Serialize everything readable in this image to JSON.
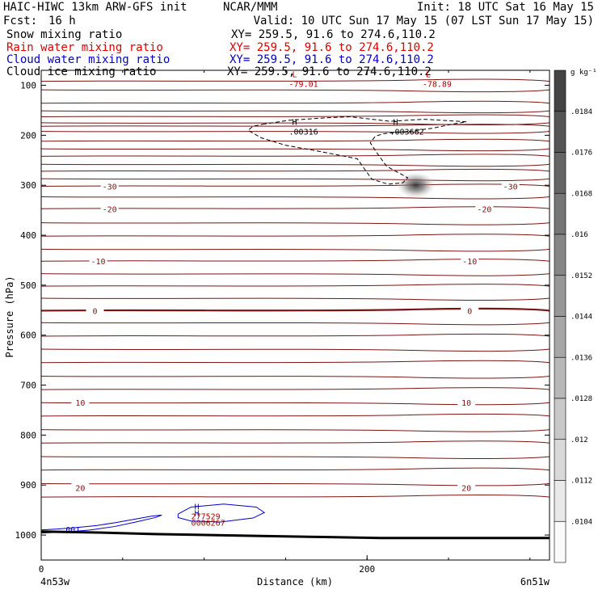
{
  "header": {
    "title_left": "HAIC-HIWC 13km ARW-GFS init",
    "org": "NCAR/MMM",
    "init": "Init: 18 UTC Sat 16 May 15",
    "fcst_label": "Fcst:",
    "fcst_value": "16 h",
    "valid": "Valid: 10 UTC Sun 17 May 15 (07 LST Sun 17 May 15)"
  },
  "fields": [
    {
      "name": "Snow mixing ratio",
      "xy": "XY= 259.5, 91.6 to 274.6,110.2",
      "color": "#000000"
    },
    {
      "name": "Rain water mixing ratio",
      "xy": "XY= 259.5, 91.6 to 274.6,110.2",
      "color": "#e00000"
    },
    {
      "name": "Cloud water mixing ratio",
      "xy": "XY= 259.5, 91.6 to 274.6,110.2",
      "color": "#0000c8"
    },
    {
      "name": "Cloud ice mixing ratio",
      "xy": "XY= 259.5, 91.6 to 274.6,110.2",
      "color": "#000000"
    }
  ],
  "colorbar": {
    "units": "g kg⁻¹",
    "labels": [
      ".0184",
      ".0176",
      ".0168",
      ".016",
      ".0152",
      ".0144",
      ".0136",
      ".0128",
      ".012",
      ".0112",
      ".0104"
    ]
  },
  "chart_data": {
    "type": "contour-cross-section",
    "xlabel": "Distance (km)",
    "ylabel": "Pressure (hPa)",
    "xlim": [
      0,
      312
    ],
    "ylim": [
      1050,
      70
    ],
    "x_ticks": [
      0,
      200
    ],
    "y_ticks": [
      100,
      200,
      300,
      400,
      500,
      600,
      700,
      800,
      900,
      1000
    ],
    "x_endpoint_labels": [
      "4n53w",
      "6n51w"
    ],
    "temperature_isotherms_hpa": [
      92,
      109,
      136,
      151,
      163,
      175,
      182,
      192,
      212,
      227,
      242,
      258,
      272,
      287,
      302,
      323,
      347,
      375,
      402,
      428,
      452,
      477,
      502,
      526,
      551,
      575,
      602,
      628,
      655,
      682,
      709,
      735,
      762,
      789,
      816,
      843,
      870,
      897,
      924
    ],
    "isotherm_labels": [
      {
        "text": "-30",
        "x": 42,
        "p": 302
      },
      {
        "text": "-30",
        "x": 288,
        "p": 302
      },
      {
        "text": "-20",
        "x": 42,
        "p": 347
      },
      {
        "text": "-20",
        "x": 272,
        "p": 347
      },
      {
        "text": "-10",
        "x": 35,
        "p": 452
      },
      {
        "text": "-10",
        "x": 263,
        "p": 452
      },
      {
        "text": "0",
        "x": 33,
        "p": 551
      },
      {
        "text": "0",
        "x": 263,
        "p": 551
      },
      {
        "text": "10",
        "x": 24,
        "p": 735
      },
      {
        "text": "10",
        "x": 261,
        "p": 735
      },
      {
        "text": "20",
        "x": 24,
        "p": 905
      },
      {
        "text": "20",
        "x": 261,
        "p": 905
      }
    ],
    "freezing_level_hpa": 551,
    "extrema": [
      {
        "type": "L",
        "value": "-79.01",
        "x": 157,
        "p": 100
      },
      {
        "type": "L",
        "value": "-78.89",
        "x": 239,
        "p": 100
      },
      {
        "type": "H",
        "value": ".00316",
        "x": 157,
        "p": 195
      },
      {
        "type": "H",
        "value": ".003662",
        "x": 219,
        "p": 195
      },
      {
        "type": "H",
        "value": "277529",
        "x": 97,
        "p": 965
      },
      {
        "type": "H",
        "value": "0006267",
        "x": 97,
        "p": 978
      }
    ],
    "cloud_water_contour_label": ".001",
    "snow_max_location": {
      "x": 230,
      "p": 300
    },
    "terrain_hpa": [
      993,
      995,
      998,
      1000,
      1002,
      1004,
      1006,
      1006,
      1006,
      1006
    ]
  }
}
